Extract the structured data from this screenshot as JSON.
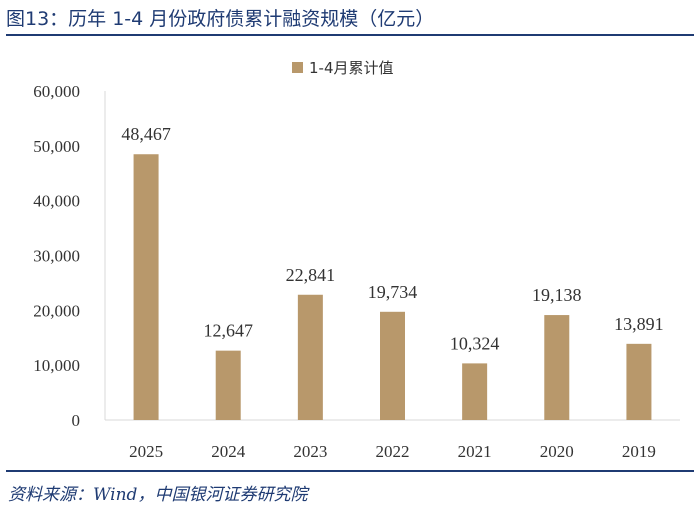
{
  "figure": {
    "title": "图13：历年 1-4 月份政府债累计融资规模（亿元）",
    "source": "资料来源：Wind，中国银河证券研究院"
  },
  "colors": {
    "bar": "#b8986b",
    "title": "#1f3b73",
    "axis": "#d9d9d9",
    "text": "#333333"
  },
  "chart_data": {
    "type": "bar",
    "title": "",
    "categories": [
      "2025",
      "2024",
      "2023",
      "2022",
      "2021",
      "2020",
      "2019"
    ],
    "series": [
      {
        "name": "1-4月累计值",
        "values": [
          48467,
          12647,
          22841,
          19734,
          10324,
          19138,
          13891
        ],
        "labels": [
          "48,467",
          "12,647",
          "22,841",
          "19,734",
          "10,324",
          "19,138",
          "13,891"
        ]
      }
    ],
    "yticks": [
      "0",
      "10,000",
      "20,000",
      "30,000",
      "40,000",
      "50,000",
      "60,000"
    ],
    "ylim": [
      0,
      60000
    ],
    "xlabel": "",
    "ylabel": "",
    "grid": false,
    "legend": "top-center"
  }
}
